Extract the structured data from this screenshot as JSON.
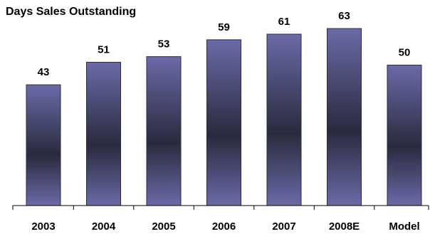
{
  "chart_data": {
    "type": "bar",
    "title": "Days Sales Outstanding",
    "xlabel": "",
    "ylabel": "",
    "categories": [
      "2003",
      "2004",
      "2005",
      "2006",
      "2007",
      "2008E",
      "Model"
    ],
    "values": [
      43,
      51,
      53,
      59,
      61,
      63,
      50
    ],
    "data_labels": [
      "43",
      "51",
      "53",
      "59",
      "61",
      "63",
      "50"
    ],
    "ylim": [
      0,
      70
    ],
    "grid": false,
    "legend": "none"
  },
  "colors": {
    "bar_light": "#6b6aa8",
    "bar_dark": "#2a2a3e",
    "bar_outline": "#2b2b45",
    "axis": "#000000",
    "text": "#000000"
  }
}
